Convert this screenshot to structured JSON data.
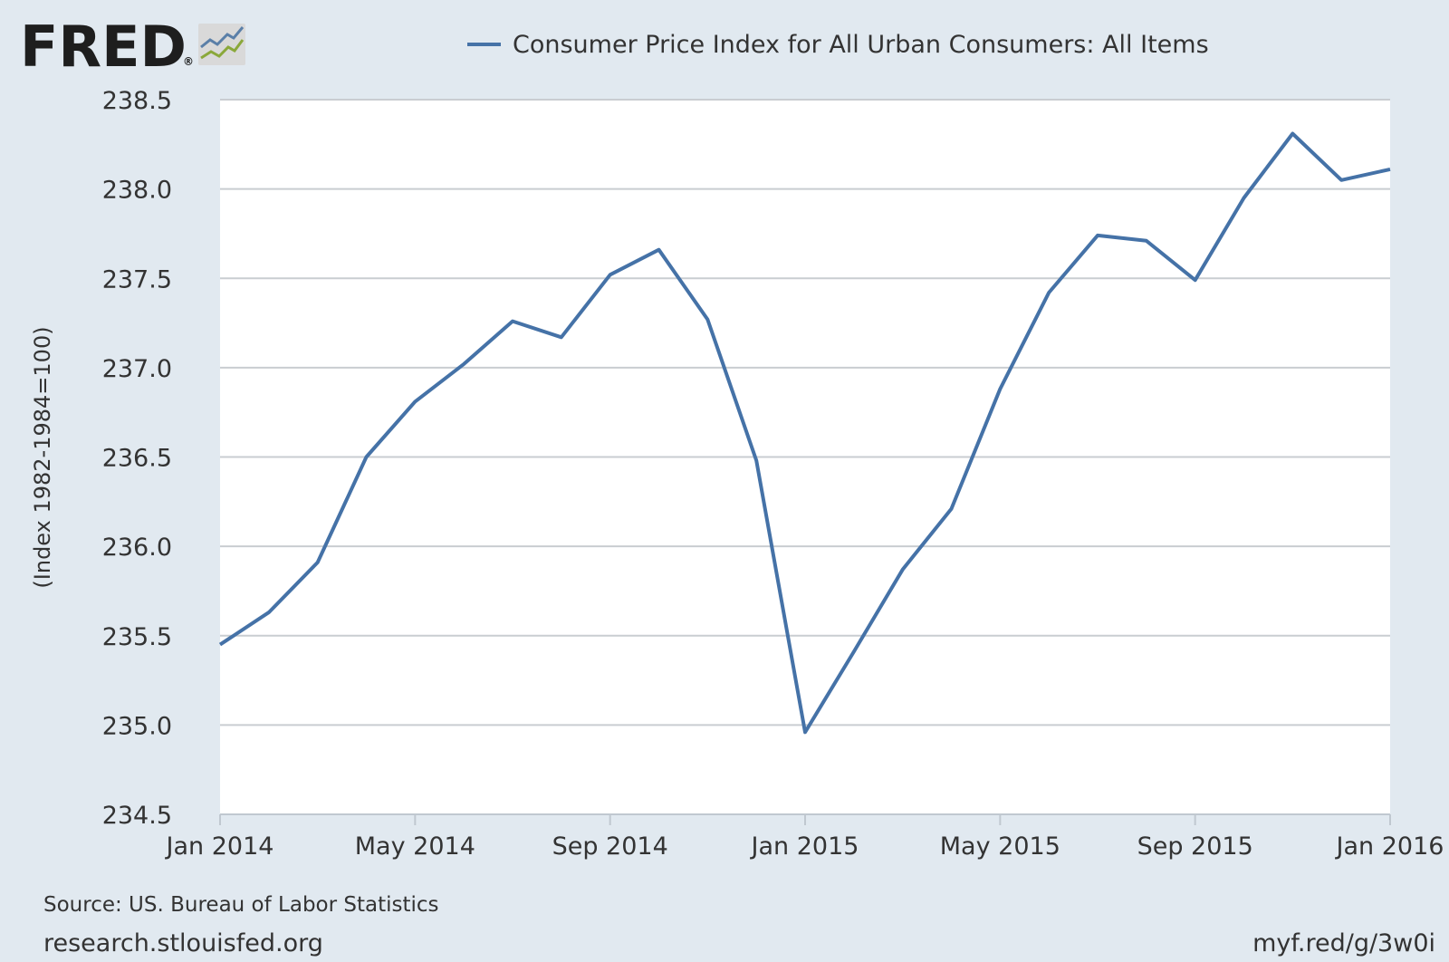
{
  "logo": {
    "text": "FRED",
    "registered": "®"
  },
  "chart_data": {
    "type": "line",
    "title": "Consumer Price Index for All Urban Consumers: All Items",
    "ylabel": "(Index 1982-1984=100)",
    "xlabel": "",
    "ylim": [
      234.5,
      238.5
    ],
    "yticks": [
      "234.5",
      "235.0",
      "235.5",
      "236.0",
      "236.5",
      "237.0",
      "237.5",
      "238.0",
      "238.5"
    ],
    "ytick_values": [
      234.5,
      235.0,
      235.5,
      236.0,
      236.5,
      237.0,
      237.5,
      238.0,
      238.5
    ],
    "xticks": [
      {
        "label": "Jan 2014",
        "index": 0
      },
      {
        "label": "May 2014",
        "index": 4
      },
      {
        "label": "Sep 2014",
        "index": 8
      },
      {
        "label": "Jan 2015",
        "index": 12
      },
      {
        "label": "May 2015",
        "index": 16
      },
      {
        "label": "Sep 2015",
        "index": 20
      },
      {
        "label": "Jan 2016",
        "index": 24
      }
    ],
    "grid": true,
    "legend_position": "top",
    "series": [
      {
        "name": "Consumer Price Index for All Urban Consumers: All Items",
        "color": "#4572a7",
        "x": [
          "Jan 2014",
          "Feb 2014",
          "Mar 2014",
          "Apr 2014",
          "May 2014",
          "Jun 2014",
          "Jul 2014",
          "Aug 2014",
          "Sep 2014",
          "Oct 2014",
          "Nov 2014",
          "Dec 2014",
          "Jan 2015",
          "Feb 2015",
          "Mar 2015",
          "Apr 2015",
          "May 2015",
          "Jun 2015",
          "Jul 2015",
          "Aug 2015",
          "Sep 2015",
          "Oct 2015",
          "Nov 2015",
          "Dec 2015",
          "Jan 2016"
        ],
        "values": [
          235.45,
          235.63,
          235.91,
          236.5,
          236.81,
          237.02,
          237.26,
          237.17,
          237.52,
          237.66,
          237.27,
          236.48,
          234.96,
          235.41,
          235.87,
          236.21,
          236.88,
          237.42,
          237.74,
          237.71,
          237.49,
          237.95,
          238.31,
          238.05,
          238.11
        ]
      }
    ]
  },
  "footer": {
    "source": "Source: US. Bureau of Labor Statistics",
    "site": "research.stlouisfed.org",
    "short_url": "myf.red/g/3w0i"
  }
}
